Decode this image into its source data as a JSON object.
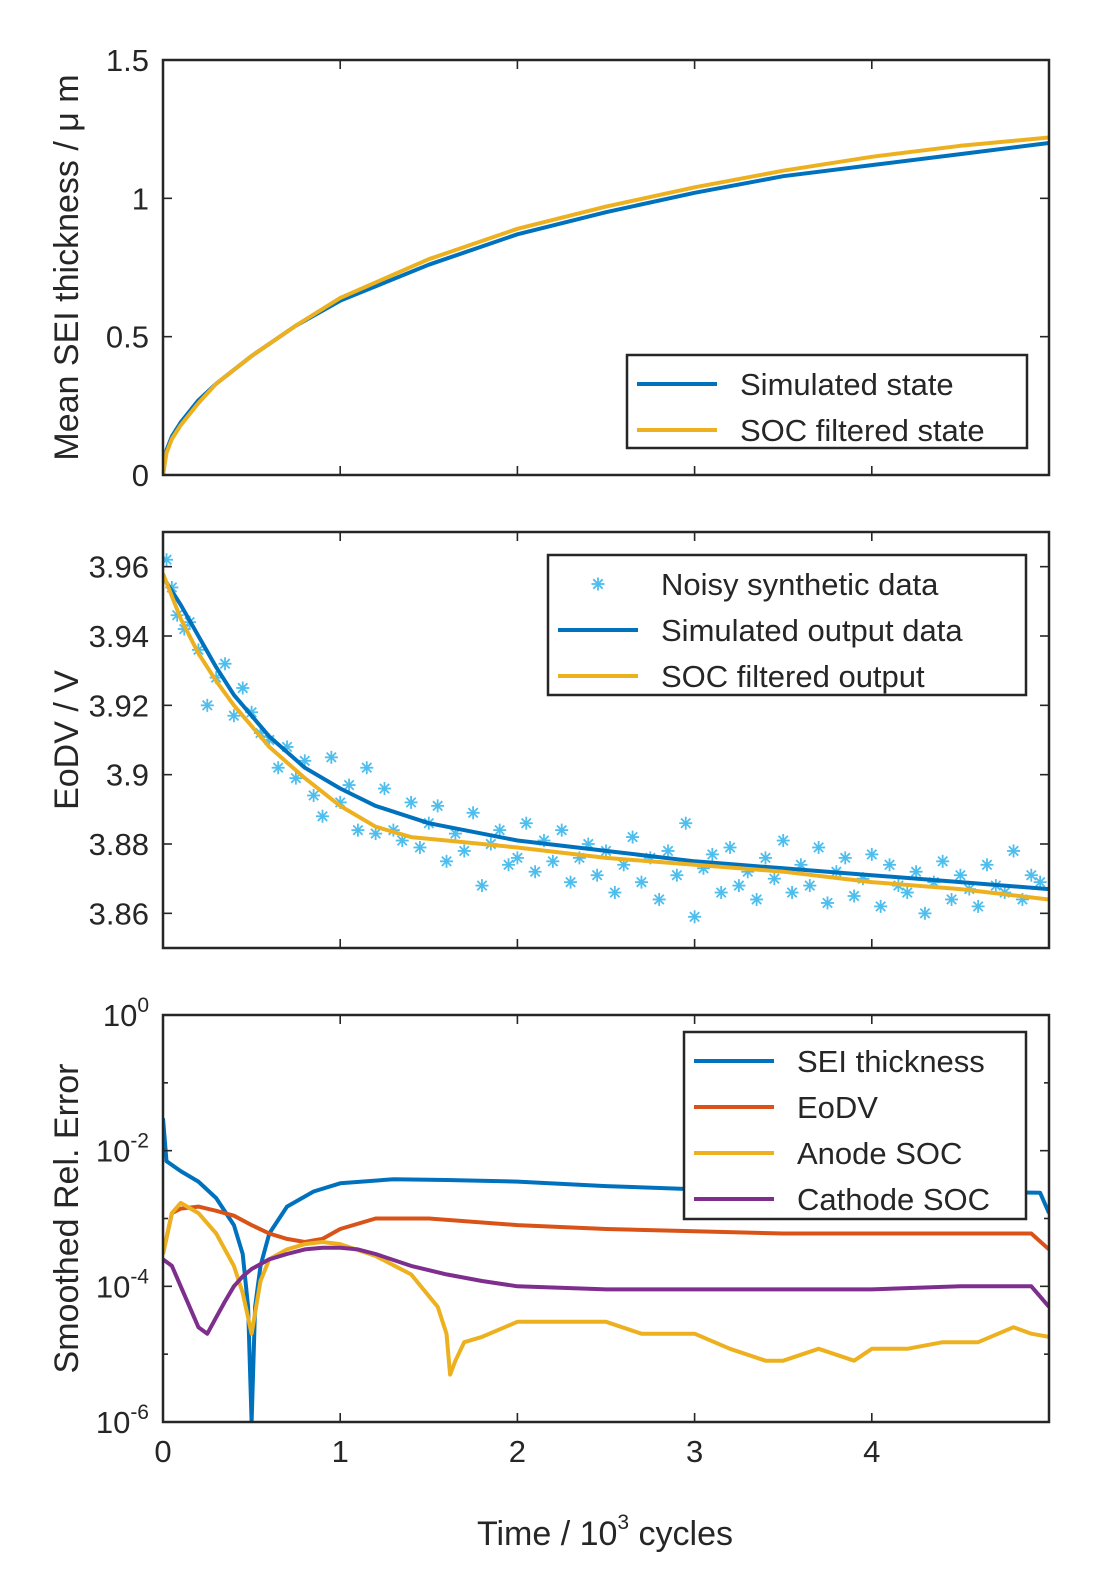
{
  "chart_data": [
    {
      "type": "line",
      "ylabel": "Mean SEI thickness  /  μ m",
      "xlim": [
        0,
        5
      ],
      "ylim": [
        0,
        1.5
      ],
      "yticks": [
        0,
        0.5,
        1,
        1.5
      ],
      "ytick_labels": [
        "0",
        "0.5",
        "1",
        "1.5"
      ],
      "legend_position": "bottom-right",
      "series": [
        {
          "name": "Simulated state",
          "color": "#0072BD",
          "x": [
            0,
            0.02,
            0.05,
            0.1,
            0.2,
            0.3,
            0.5,
            0.75,
            1.0,
            1.5,
            2.0,
            2.5,
            3.0,
            3.5,
            4.0,
            4.5,
            5.0
          ],
          "y": [
            0,
            0.09,
            0.14,
            0.19,
            0.27,
            0.33,
            0.43,
            0.54,
            0.63,
            0.76,
            0.87,
            0.95,
            1.02,
            1.08,
            1.12,
            1.16,
            1.2
          ]
        },
        {
          "name": "SOC filtered state",
          "color": "#EDB120",
          "x": [
            0,
            0.02,
            0.05,
            0.1,
            0.2,
            0.3,
            0.5,
            0.75,
            1.0,
            1.5,
            2.0,
            2.5,
            3.0,
            3.5,
            4.0,
            4.5,
            5.0
          ],
          "y": [
            0,
            0.08,
            0.13,
            0.18,
            0.26,
            0.33,
            0.43,
            0.54,
            0.64,
            0.78,
            0.89,
            0.97,
            1.04,
            1.1,
            1.15,
            1.19,
            1.22
          ]
        }
      ]
    },
    {
      "type": "line",
      "ylabel": "EoDV  /  V",
      "xlim": [
        0,
        5
      ],
      "ylim": [
        3.85,
        3.97
      ],
      "yticks": [
        3.86,
        3.88,
        3.9,
        3.92,
        3.94,
        3.96
      ],
      "ytick_labels": [
        "3.86",
        "3.88",
        "3.9",
        "3.92",
        "3.94",
        "3.96"
      ],
      "legend_position": "top-right",
      "series": [
        {
          "name": "Noisy synthetic data",
          "color": "#4DBEEE",
          "marker": "*",
          "x": [
            0.02,
            0.05,
            0.08,
            0.12,
            0.15,
            0.2,
            0.25,
            0.3,
            0.35,
            0.4,
            0.45,
            0.5,
            0.55,
            0.6,
            0.65,
            0.7,
            0.75,
            0.8,
            0.85,
            0.9,
            0.95,
            1.0,
            1.05,
            1.1,
            1.15,
            1.2,
            1.25,
            1.3,
            1.35,
            1.4,
            1.45,
            1.5,
            1.55,
            1.6,
            1.65,
            1.7,
            1.75,
            1.8,
            1.85,
            1.9,
            1.95,
            2.0,
            2.05,
            2.1,
            2.15,
            2.2,
            2.25,
            2.3,
            2.35,
            2.4,
            2.45,
            2.5,
            2.55,
            2.6,
            2.65,
            2.7,
            2.75,
            2.8,
            2.85,
            2.9,
            2.95,
            3.0,
            3.05,
            3.1,
            3.15,
            3.2,
            3.25,
            3.3,
            3.35,
            3.4,
            3.45,
            3.5,
            3.55,
            3.6,
            3.65,
            3.7,
            3.75,
            3.8,
            3.85,
            3.9,
            3.95,
            4.0,
            4.05,
            4.1,
            4.15,
            4.2,
            4.25,
            4.3,
            4.35,
            4.4,
            4.45,
            4.5,
            4.55,
            4.6,
            4.65,
            4.7,
            4.75,
            4.8,
            4.85,
            4.9,
            4.95
          ],
          "y": [
            3.962,
            3.954,
            3.946,
            3.942,
            3.944,
            3.936,
            3.92,
            3.928,
            3.932,
            3.917,
            3.925,
            3.918,
            3.912,
            3.91,
            3.902,
            3.908,
            3.899,
            3.904,
            3.894,
            3.888,
            3.905,
            3.892,
            3.897,
            3.884,
            3.902,
            3.883,
            3.896,
            3.884,
            3.881,
            3.892,
            3.879,
            3.886,
            3.891,
            3.875,
            3.883,
            3.878,
            3.889,
            3.868,
            3.88,
            3.884,
            3.874,
            3.876,
            3.886,
            3.872,
            3.881,
            3.875,
            3.884,
            3.869,
            3.876,
            3.88,
            3.871,
            3.878,
            3.866,
            3.874,
            3.882,
            3.869,
            3.876,
            3.864,
            3.878,
            3.871,
            3.886,
            3.859,
            3.873,
            3.877,
            3.866,
            3.879,
            3.868,
            3.872,
            3.864,
            3.876,
            3.87,
            3.881,
            3.866,
            3.874,
            3.868,
            3.879,
            3.863,
            3.872,
            3.876,
            3.865,
            3.87,
            3.877,
            3.862,
            3.874,
            3.868,
            3.866,
            3.872,
            3.86,
            3.869,
            3.875,
            3.864,
            3.871,
            3.867,
            3.862,
            3.874,
            3.868,
            3.866,
            3.878,
            3.864,
            3.871,
            3.869
          ]
        },
        {
          "name": "Simulated output data",
          "color": "#0072BD",
          "x": [
            0,
            0.1,
            0.2,
            0.3,
            0.4,
            0.5,
            0.6,
            0.8,
            1.0,
            1.2,
            1.5,
            2.0,
            2.5,
            3.0,
            3.5,
            4.0,
            4.5,
            5.0
          ],
          "y": [
            3.957,
            3.949,
            3.94,
            3.931,
            3.923,
            3.917,
            3.911,
            3.902,
            3.896,
            3.891,
            3.886,
            3.881,
            3.878,
            3.875,
            3.873,
            3.871,
            3.869,
            3.867
          ]
        },
        {
          "name": "SOC filtered output",
          "color": "#EDB120",
          "x": [
            0,
            0.1,
            0.2,
            0.3,
            0.4,
            0.5,
            0.6,
            0.8,
            1.0,
            1.2,
            1.4,
            1.6,
            2.0,
            2.5,
            3.0,
            3.5,
            4.0,
            4.5,
            5.0
          ],
          "y": [
            3.958,
            3.945,
            3.935,
            3.927,
            3.92,
            3.914,
            3.908,
            3.899,
            3.891,
            3.885,
            3.882,
            3.881,
            3.879,
            3.876,
            3.874,
            3.872,
            3.869,
            3.867,
            3.864
          ]
        }
      ]
    },
    {
      "type": "line",
      "yscale": "log",
      "ylabel": "Smoothed Rel. Error",
      "xlabel_parts": [
        "Time  /  10",
        "3",
        " cycles"
      ],
      "xlim": [
        0,
        5
      ],
      "ylim": [
        1e-06,
        1
      ],
      "xticks": [
        0,
        1,
        2,
        3,
        4
      ],
      "xtick_labels": [
        "0",
        "1",
        "2",
        "3",
        "4"
      ],
      "yticks_exp": [
        -6,
        -4,
        -2,
        0
      ],
      "ytick_labels": [
        {
          "base": "10",
          "exp": "-6"
        },
        {
          "base": "10",
          "exp": "-4"
        },
        {
          "base": "10",
          "exp": "-2"
        },
        {
          "base": "10",
          "exp": "0"
        }
      ],
      "legend_position": "top-right",
      "series": [
        {
          "name": "SEI thickness",
          "color": "#0072BD",
          "x": [
            0,
            0.02,
            0.1,
            0.2,
            0.3,
            0.4,
            0.45,
            0.48,
            0.5,
            0.52,
            0.55,
            0.6,
            0.7,
            0.85,
            1.0,
            1.3,
            1.6,
            2.0,
            2.5,
            3.0,
            3.5,
            4.0,
            4.5,
            4.95,
            5.0
          ],
          "y": [
            0.03,
            0.007,
            0.005,
            0.0035,
            0.002,
            0.0008,
            0.0003,
            5e-05,
            1e-06,
            5e-05,
            0.0002,
            0.0006,
            0.0015,
            0.0025,
            0.0033,
            0.0038,
            0.0037,
            0.0035,
            0.003,
            0.0027,
            0.0026,
            0.0026,
            0.0025,
            0.0024,
            0.0012
          ]
        },
        {
          "name": "EoDV",
          "color": "#D95319",
          "x": [
            0,
            0.05,
            0.1,
            0.2,
            0.3,
            0.4,
            0.5,
            0.6,
            0.7,
            0.8,
            0.9,
            1.0,
            1.2,
            1.5,
            2.0,
            2.5,
            3.0,
            3.5,
            4.0,
            4.5,
            4.9,
            5.0
          ],
          "y": [
            0.0003,
            0.0012,
            0.0014,
            0.0015,
            0.0013,
            0.0011,
            0.0008,
            0.0006,
            0.0005,
            0.00045,
            0.0005,
            0.0007,
            0.001,
            0.001,
            0.0008,
            0.0007,
            0.00065,
            0.0006,
            0.0006,
            0.0006,
            0.0006,
            0.00035
          ]
        },
        {
          "name": "Anode SOC",
          "color": "#EDB120",
          "x": [
            0,
            0.05,
            0.1,
            0.2,
            0.3,
            0.4,
            0.45,
            0.5,
            0.55,
            0.6,
            0.7,
            0.8,
            0.9,
            1.0,
            1.2,
            1.4,
            1.55,
            1.6,
            1.62,
            1.65,
            1.7,
            1.8,
            2.0,
            2.2,
            2.5,
            2.7,
            2.8,
            3.0,
            3.2,
            3.4,
            3.5,
            3.7,
            3.9,
            4.0,
            4.2,
            4.4,
            4.6,
            4.8,
            4.9,
            5.0
          ],
          "y": [
            0.0003,
            0.0012,
            0.0017,
            0.0012,
            0.0006,
            0.0002,
            8e-05,
            2e-05,
            0.00012,
            0.00025,
            0.00035,
            0.00042,
            0.00045,
            0.00042,
            0.00028,
            0.00015,
            5e-05,
            2e-05,
            5e-06,
            8e-06,
            1.5e-05,
            1.8e-05,
            3e-05,
            3e-05,
            3e-05,
            2e-05,
            2e-05,
            2e-05,
            1.2e-05,
            8e-06,
            8e-06,
            1.2e-05,
            8e-06,
            1.2e-05,
            1.2e-05,
            1.5e-05,
            1.5e-05,
            2.5e-05,
            2e-05,
            1.8e-05
          ]
        },
        {
          "name": "Cathode SOC",
          "color": "#7E2F8E",
          "x": [
            0,
            0.05,
            0.1,
            0.15,
            0.2,
            0.25,
            0.3,
            0.35,
            0.4,
            0.45,
            0.5,
            0.6,
            0.7,
            0.8,
            0.9,
            1.0,
            1.1,
            1.2,
            1.4,
            1.6,
            1.8,
            2.0,
            2.5,
            3.0,
            3.5,
            4.0,
            4.5,
            4.9,
            5.0
          ],
          "y": [
            0.00025,
            0.0002,
            0.0001,
            5e-05,
            2.5e-05,
            2e-05,
            3.5e-05,
            6e-05,
            0.0001,
            0.00014,
            0.00018,
            0.00025,
            0.0003,
            0.00035,
            0.00037,
            0.00037,
            0.00035,
            0.0003,
            0.0002,
            0.00015,
            0.00012,
            0.0001,
            9e-05,
            9e-05,
            9e-05,
            9e-05,
            0.0001,
            0.0001,
            5e-05
          ]
        }
      ]
    }
  ]
}
